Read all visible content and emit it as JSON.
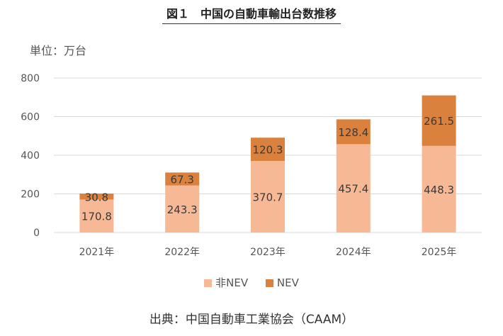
{
  "header": {
    "title": "図１　中国の自動車輸出台数推移",
    "unit_label": "単位：万台"
  },
  "footer": {
    "source": "出典：中国自動車工業協会（CAAM）"
  },
  "colors": {
    "non_nev": "#F7B896",
    "nev": "#D9813D",
    "grid": "#D9D9D9"
  },
  "chart_data": {
    "type": "bar",
    "stacked": true,
    "title": "図１　中国の自動車輸出台数推移",
    "ylabel": "単位：万台",
    "xlabel": "",
    "categories": [
      "2021年",
      "2022年",
      "2023年",
      "2024年",
      "2025年"
    ],
    "series": [
      {
        "name": "非NEV",
        "values": [
          170.8,
          243.3,
          370.7,
          457.4,
          448.3
        ],
        "labels": [
          "170.8",
          "243.3",
          "370.7",
          "457.4",
          "448.3"
        ]
      },
      {
        "name": "NEV",
        "values": [
          30.8,
          67.3,
          120.3,
          128.4,
          261.5
        ],
        "labels": [
          "30.8",
          "67.3",
          "120.3",
          "128.4",
          "261.5"
        ]
      }
    ],
    "ylim": [
      0,
      800
    ],
    "yticks": [
      "0",
      "200",
      "400",
      "600",
      "800"
    ],
    "grid": true,
    "legend_position": "bottom"
  }
}
